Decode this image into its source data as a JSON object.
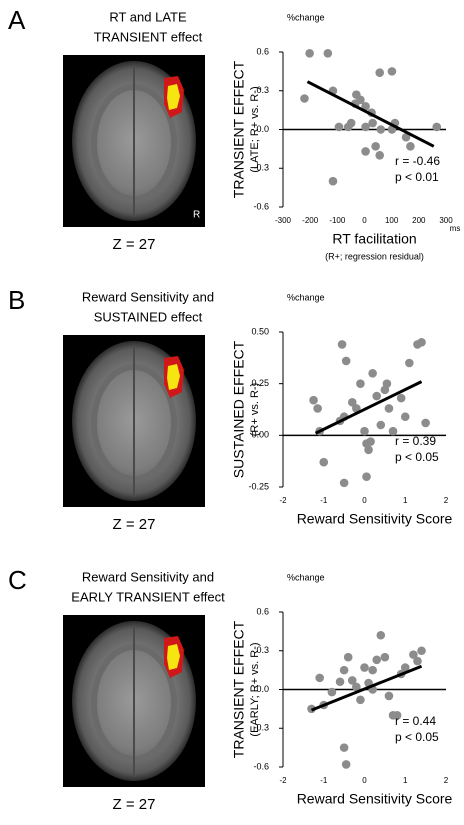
{
  "chart_data": [
    {
      "type": "scatter",
      "letter": "A",
      "brain_title": [
        "RT and LATE",
        "TRANSIENT effect"
      ],
      "slice_label": "Z = 27",
      "orientation_label": "R",
      "y_unit": "%change",
      "y_label": [
        "TRANSIENT EFFECT",
        "(LATE; R+ vs. R-)"
      ],
      "x_label": "RT facilitation",
      "x_sublabel": "(R+; regression residual)",
      "x_unit": "ms",
      "annotations": [
        "r = -0.46",
        "p < 0.01"
      ],
      "color": "#8c8c8c",
      "fit_color": "#000000",
      "x": [
        -202,
        -135,
        -221,
        -116,
        -30,
        -15,
        4,
        -34,
        56,
        101,
        26,
        -60,
        -94,
        -49,
        30,
        60,
        101,
        41,
        56,
        4,
        -116,
        153,
        169,
        266,
        4,
        112
      ],
      "y": [
        0.59,
        0.59,
        0.24,
        0.3,
        0.27,
        0.23,
        0.18,
        0.2,
        0.44,
        0.45,
        0.13,
        0.02,
        0.02,
        0.05,
        0.05,
        0,
        0,
        -0.13,
        -0.2,
        -0.17,
        -0.4,
        -0.06,
        -0.13,
        0.02,
        0.02,
        0.05
      ],
      "fit": {
        "x": [
          -210,
          255
        ],
        "y": [
          0.37,
          -0.13
        ]
      },
      "xlim": [
        -300,
        300
      ],
      "xticks": [
        -300,
        -200,
        -100,
        0,
        100,
        200,
        300
      ],
      "ylim": [
        -0.6,
        0.6
      ],
      "yticks": [
        -0.6,
        -0.3,
        {
          "value": 0,
          "label": "0.0"
        },
        0.3,
        0.6
      ]
    },
    {
      "type": "scatter",
      "letter": "B",
      "brain_title": [
        "Reward Sensitivity and",
        "SUSTAINED effect"
      ],
      "slice_label": "Z = 27",
      "y_unit": "%change",
      "y_label": [
        "SUSTAINED EFFECT",
        "(R+ vs. R-)"
      ],
      "x_label": "Reward Sensitivity Score",
      "annotations": [
        "r = 0.39",
        "p < 0.05"
      ],
      "color": "#8c8c8c",
      "fit_color": "#000000",
      "x": [
        -1.25,
        -1.15,
        -1.1,
        -1.0,
        -0.6,
        -0.55,
        -0.5,
        -0.45,
        -0.3,
        -0.2,
        -0.1,
        0,
        0.05,
        0.1,
        0.15,
        0.2,
        0.3,
        0.4,
        0.5,
        0.55,
        0.6,
        0.7,
        0.9,
        1.0,
        1.1,
        1.3,
        1.4,
        1.5,
        -0.5,
        0.05
      ],
      "y": [
        0.17,
        0.13,
        0.02,
        -0.13,
        0.07,
        0.44,
        0.09,
        0.36,
        0.16,
        0.13,
        0.25,
        0.02,
        -0.04,
        -0.07,
        -0.03,
        0.3,
        0.19,
        0.05,
        0.22,
        0.25,
        0.13,
        0.02,
        0.18,
        0.09,
        0.35,
        0.44,
        0.45,
        0.06,
        -0.23,
        -0.2
      ],
      "fit": {
        "x": [
          -1.2,
          1.4
        ],
        "y": [
          0.01,
          0.26
        ]
      },
      "xlim": [
        -2,
        2
      ],
      "xticks": [
        -2,
        -1,
        0,
        1,
        2
      ],
      "ylim": [
        -0.25,
        0.5
      ],
      "yticks": [
        -0.25,
        {
          "value": 0,
          "label": "0.00"
        },
        0.25,
        {
          "value": 0.5,
          "label": "0.50"
        }
      ]
    },
    {
      "type": "scatter",
      "letter": "C",
      "brain_title": [
        "Reward Sensitivity and",
        "EARLY TRANSIENT effect"
      ],
      "slice_label": "Z = 27",
      "y_unit": "%change",
      "y_label": [
        "TRANSIENT EFFECT",
        "(EARLY; R+ vs. R-)"
      ],
      "x_label": "Reward Sensitivity Score",
      "annotations": [
        "r = 0.44",
        "p < 0.05"
      ],
      "color": "#8c8c8c",
      "fit_color": "#000000",
      "x": [
        -1.3,
        -1.1,
        -1.0,
        -0.8,
        -0.6,
        -0.5,
        -0.4,
        -0.5,
        -0.45,
        -0.3,
        -0.2,
        0,
        0.1,
        0.2,
        0.3,
        0.4,
        0.5,
        0.6,
        0.7,
        0.8,
        0.9,
        1.0,
        1.2,
        1.3,
        1.4,
        -0.1,
        0.2
      ],
      "y": [
        -0.15,
        0.09,
        -0.12,
        -0.02,
        0.06,
        0.15,
        0.25,
        -0.45,
        -0.58,
        0.07,
        0.02,
        0.17,
        0.05,
        0.15,
        0.23,
        0.42,
        0.25,
        -0.05,
        -0.2,
        -0.2,
        0.12,
        0.17,
        0.27,
        0.22,
        0.3,
        -0.08,
        0
      ],
      "fit": {
        "x": [
          -1.3,
          1.4
        ],
        "y": [
          -0.16,
          0.18
        ]
      },
      "xlim": [
        -2,
        2
      ],
      "xticks": [
        -2,
        -1,
        0,
        1,
        2
      ],
      "ylim": [
        -0.6,
        0.6
      ],
      "yticks": [
        -0.6,
        -0.3,
        {
          "value": 0,
          "label": "0.0"
        },
        0.3,
        0.6
      ]
    }
  ]
}
